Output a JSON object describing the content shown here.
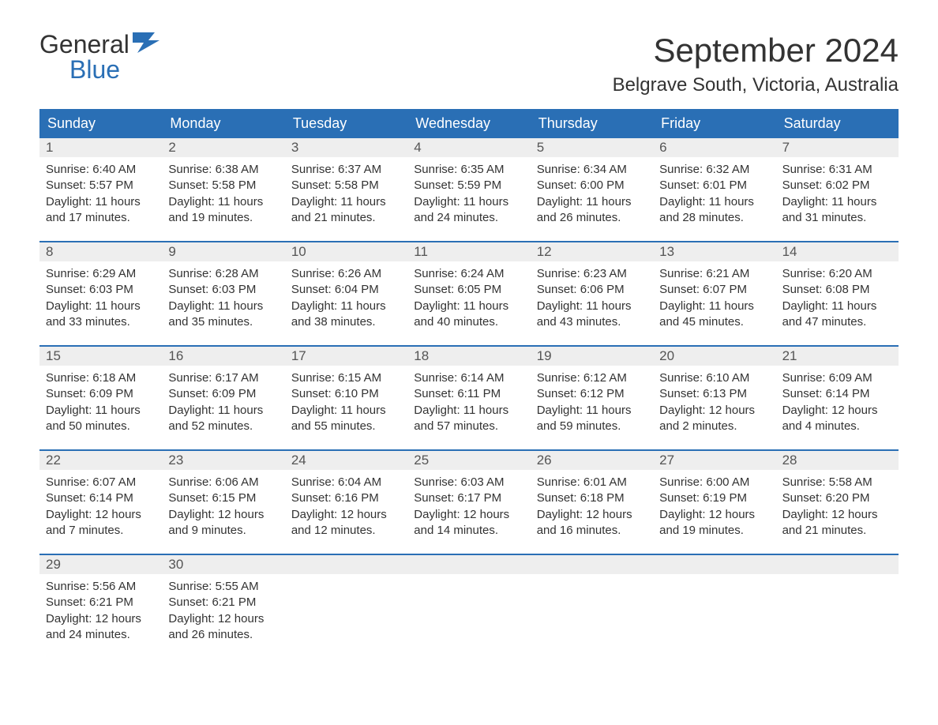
{
  "logo": {
    "text_top": "General",
    "text_bottom": "Blue",
    "top_color": "#333333",
    "bottom_color": "#2a6fb5",
    "icon_color": "#2a6fb5"
  },
  "title": "September 2024",
  "location": "Belgrave South, Victoria, Australia",
  "colors": {
    "header_bg": "#2a6fb5",
    "header_text": "#ffffff",
    "day_number_bg": "#eeeeee",
    "week_border": "#2a6fb5",
    "body_text": "#333333",
    "background": "#ffffff"
  },
  "day_headers": [
    "Sunday",
    "Monday",
    "Tuesday",
    "Wednesday",
    "Thursday",
    "Friday",
    "Saturday"
  ],
  "weeks": [
    [
      {
        "day": "1",
        "sunrise": "Sunrise: 6:40 AM",
        "sunset": "Sunset: 5:57 PM",
        "daylight1": "Daylight: 11 hours",
        "daylight2": "and 17 minutes."
      },
      {
        "day": "2",
        "sunrise": "Sunrise: 6:38 AM",
        "sunset": "Sunset: 5:58 PM",
        "daylight1": "Daylight: 11 hours",
        "daylight2": "and 19 minutes."
      },
      {
        "day": "3",
        "sunrise": "Sunrise: 6:37 AM",
        "sunset": "Sunset: 5:58 PM",
        "daylight1": "Daylight: 11 hours",
        "daylight2": "and 21 minutes."
      },
      {
        "day": "4",
        "sunrise": "Sunrise: 6:35 AM",
        "sunset": "Sunset: 5:59 PM",
        "daylight1": "Daylight: 11 hours",
        "daylight2": "and 24 minutes."
      },
      {
        "day": "5",
        "sunrise": "Sunrise: 6:34 AM",
        "sunset": "Sunset: 6:00 PM",
        "daylight1": "Daylight: 11 hours",
        "daylight2": "and 26 minutes."
      },
      {
        "day": "6",
        "sunrise": "Sunrise: 6:32 AM",
        "sunset": "Sunset: 6:01 PM",
        "daylight1": "Daylight: 11 hours",
        "daylight2": "and 28 minutes."
      },
      {
        "day": "7",
        "sunrise": "Sunrise: 6:31 AM",
        "sunset": "Sunset: 6:02 PM",
        "daylight1": "Daylight: 11 hours",
        "daylight2": "and 31 minutes."
      }
    ],
    [
      {
        "day": "8",
        "sunrise": "Sunrise: 6:29 AM",
        "sunset": "Sunset: 6:03 PM",
        "daylight1": "Daylight: 11 hours",
        "daylight2": "and 33 minutes."
      },
      {
        "day": "9",
        "sunrise": "Sunrise: 6:28 AM",
        "sunset": "Sunset: 6:03 PM",
        "daylight1": "Daylight: 11 hours",
        "daylight2": "and 35 minutes."
      },
      {
        "day": "10",
        "sunrise": "Sunrise: 6:26 AM",
        "sunset": "Sunset: 6:04 PM",
        "daylight1": "Daylight: 11 hours",
        "daylight2": "and 38 minutes."
      },
      {
        "day": "11",
        "sunrise": "Sunrise: 6:24 AM",
        "sunset": "Sunset: 6:05 PM",
        "daylight1": "Daylight: 11 hours",
        "daylight2": "and 40 minutes."
      },
      {
        "day": "12",
        "sunrise": "Sunrise: 6:23 AM",
        "sunset": "Sunset: 6:06 PM",
        "daylight1": "Daylight: 11 hours",
        "daylight2": "and 43 minutes."
      },
      {
        "day": "13",
        "sunrise": "Sunrise: 6:21 AM",
        "sunset": "Sunset: 6:07 PM",
        "daylight1": "Daylight: 11 hours",
        "daylight2": "and 45 minutes."
      },
      {
        "day": "14",
        "sunrise": "Sunrise: 6:20 AM",
        "sunset": "Sunset: 6:08 PM",
        "daylight1": "Daylight: 11 hours",
        "daylight2": "and 47 minutes."
      }
    ],
    [
      {
        "day": "15",
        "sunrise": "Sunrise: 6:18 AM",
        "sunset": "Sunset: 6:09 PM",
        "daylight1": "Daylight: 11 hours",
        "daylight2": "and 50 minutes."
      },
      {
        "day": "16",
        "sunrise": "Sunrise: 6:17 AM",
        "sunset": "Sunset: 6:09 PM",
        "daylight1": "Daylight: 11 hours",
        "daylight2": "and 52 minutes."
      },
      {
        "day": "17",
        "sunrise": "Sunrise: 6:15 AM",
        "sunset": "Sunset: 6:10 PM",
        "daylight1": "Daylight: 11 hours",
        "daylight2": "and 55 minutes."
      },
      {
        "day": "18",
        "sunrise": "Sunrise: 6:14 AM",
        "sunset": "Sunset: 6:11 PM",
        "daylight1": "Daylight: 11 hours",
        "daylight2": "and 57 minutes."
      },
      {
        "day": "19",
        "sunrise": "Sunrise: 6:12 AM",
        "sunset": "Sunset: 6:12 PM",
        "daylight1": "Daylight: 11 hours",
        "daylight2": "and 59 minutes."
      },
      {
        "day": "20",
        "sunrise": "Sunrise: 6:10 AM",
        "sunset": "Sunset: 6:13 PM",
        "daylight1": "Daylight: 12 hours",
        "daylight2": "and 2 minutes."
      },
      {
        "day": "21",
        "sunrise": "Sunrise: 6:09 AM",
        "sunset": "Sunset: 6:14 PM",
        "daylight1": "Daylight: 12 hours",
        "daylight2": "and 4 minutes."
      }
    ],
    [
      {
        "day": "22",
        "sunrise": "Sunrise: 6:07 AM",
        "sunset": "Sunset: 6:14 PM",
        "daylight1": "Daylight: 12 hours",
        "daylight2": "and 7 minutes."
      },
      {
        "day": "23",
        "sunrise": "Sunrise: 6:06 AM",
        "sunset": "Sunset: 6:15 PM",
        "daylight1": "Daylight: 12 hours",
        "daylight2": "and 9 minutes."
      },
      {
        "day": "24",
        "sunrise": "Sunrise: 6:04 AM",
        "sunset": "Sunset: 6:16 PM",
        "daylight1": "Daylight: 12 hours",
        "daylight2": "and 12 minutes."
      },
      {
        "day": "25",
        "sunrise": "Sunrise: 6:03 AM",
        "sunset": "Sunset: 6:17 PM",
        "daylight1": "Daylight: 12 hours",
        "daylight2": "and 14 minutes."
      },
      {
        "day": "26",
        "sunrise": "Sunrise: 6:01 AM",
        "sunset": "Sunset: 6:18 PM",
        "daylight1": "Daylight: 12 hours",
        "daylight2": "and 16 minutes."
      },
      {
        "day": "27",
        "sunrise": "Sunrise: 6:00 AM",
        "sunset": "Sunset: 6:19 PM",
        "daylight1": "Daylight: 12 hours",
        "daylight2": "and 19 minutes."
      },
      {
        "day": "28",
        "sunrise": "Sunrise: 5:58 AM",
        "sunset": "Sunset: 6:20 PM",
        "daylight1": "Daylight: 12 hours",
        "daylight2": "and 21 minutes."
      }
    ],
    [
      {
        "day": "29",
        "sunrise": "Sunrise: 5:56 AM",
        "sunset": "Sunset: 6:21 PM",
        "daylight1": "Daylight: 12 hours",
        "daylight2": "and 24 minutes."
      },
      {
        "day": "30",
        "sunrise": "Sunrise: 5:55 AM",
        "sunset": "Sunset: 6:21 PM",
        "daylight1": "Daylight: 12 hours",
        "daylight2": "and 26 minutes."
      },
      {
        "day": "",
        "sunrise": "",
        "sunset": "",
        "daylight1": "",
        "daylight2": ""
      },
      {
        "day": "",
        "sunrise": "",
        "sunset": "",
        "daylight1": "",
        "daylight2": ""
      },
      {
        "day": "",
        "sunrise": "",
        "sunset": "",
        "daylight1": "",
        "daylight2": ""
      },
      {
        "day": "",
        "sunrise": "",
        "sunset": "",
        "daylight1": "",
        "daylight2": ""
      },
      {
        "day": "",
        "sunrise": "",
        "sunset": "",
        "daylight1": "",
        "daylight2": ""
      }
    ]
  ]
}
